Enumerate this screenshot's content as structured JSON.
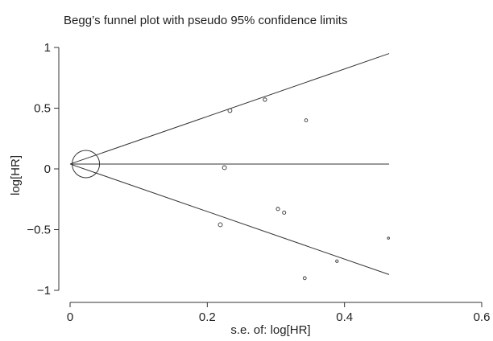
{
  "chart_data": {
    "type": "scatter",
    "title": "Begg’s funnel plot with pseudo 95% confidence limits",
    "xlabel": "s.e. of: log[HR]",
    "ylabel": "log[HR]",
    "xlim": [
      0,
      0.6
    ],
    "ylim": [
      -1,
      1
    ],
    "x_ticks": [
      0,
      0.2,
      0.4,
      0.6
    ],
    "x_tick_labels": [
      "0",
      "0.2",
      "0.4",
      "0.6"
    ],
    "y_ticks": [
      -1,
      -0.5,
      0,
      0.5,
      1
    ],
    "y_tick_labels": [
      "−1",
      "−0.5",
      "0",
      "0.5",
      "1"
    ],
    "grid": false,
    "pooled_estimate": 0.04,
    "funnel_max_se": 0.465,
    "ci_upper_at_max_se": 0.95,
    "ci_lower_at_max_se": -0.87,
    "pooled_marker_se": 0.023,
    "points": [
      {
        "se": 0.233,
        "logHR": 0.48
      },
      {
        "se": 0.284,
        "logHR": 0.57
      },
      {
        "se": 0.344,
        "logHR": 0.4
      },
      {
        "se": 0.225,
        "logHR": 0.01
      },
      {
        "se": 0.219,
        "logHR": -0.46
      },
      {
        "se": 0.303,
        "logHR": -0.33
      },
      {
        "se": 0.312,
        "logHR": -0.36
      },
      {
        "se": 0.464,
        "logHR": -0.57
      },
      {
        "se": 0.389,
        "logHR": -0.76
      },
      {
        "se": 0.342,
        "logHR": -0.9
      }
    ],
    "line_color": "#333333",
    "point_color": "#333333"
  }
}
